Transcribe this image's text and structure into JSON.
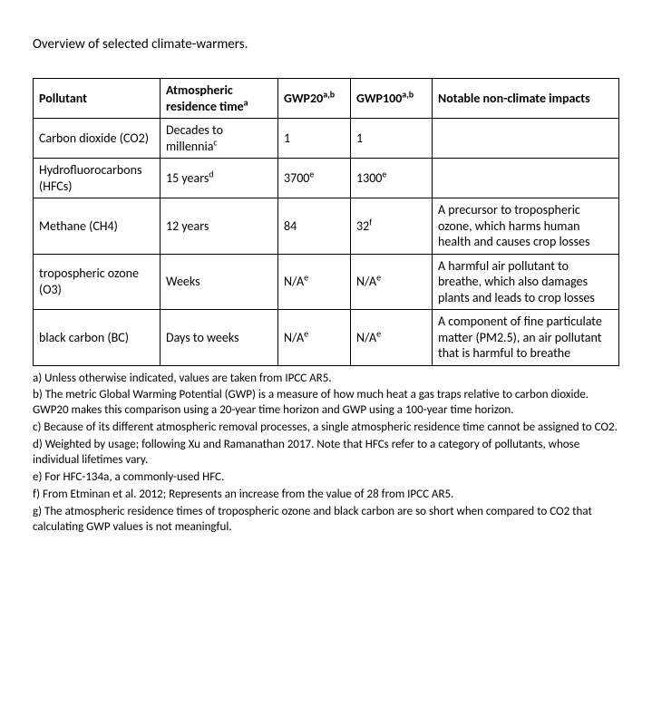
{
  "title": "Overview of selected climate-warmers.",
  "headers": {
    "pollutant": "Pollutant",
    "residence": "Atmospheric residence time",
    "residence_sup": "a",
    "gwp20": "GWP20",
    "gwp20_sup": "a,b",
    "gwp100": "GWP100",
    "gwp100_sup": "a,b",
    "impacts": "Notable non-climate impacts"
  },
  "rows": [
    {
      "pollutant": "Carbon dioxide (CO2)",
      "residence": "Decades to millennia",
      "residence_sup": "c",
      "gwp20": "1",
      "gwp20_sup": "",
      "gwp100": "1",
      "gwp100_sup": "",
      "impacts": ""
    },
    {
      "pollutant": "Hydrofluorocarbons (HFCs)",
      "residence": "15 years",
      "residence_sup": "d",
      "gwp20": "3700",
      "gwp20_sup": "e",
      "gwp100": "1300",
      "gwp100_sup": "e",
      "impacts": ""
    },
    {
      "pollutant": "Methane (CH4)",
      "residence": "12 years",
      "residence_sup": "",
      "gwp20": "84",
      "gwp20_sup": "",
      "gwp100": "32",
      "gwp100_sup": "f",
      "impacts": "A precursor to tropospheric ozone, which harms human health and causes crop losses"
    },
    {
      "pollutant": "tropospheric ozone (O3)",
      "residence": "Weeks",
      "residence_sup": "",
      "gwp20": "N/A",
      "gwp20_sup": "e",
      "gwp100": "N/A",
      "gwp100_sup": "e",
      "impacts": "A harmful air pollutant to breathe, which also damages plants and leads to crop losses"
    },
    {
      "pollutant": "black carbon (BC)",
      "residence": "Days to weeks",
      "residence_sup": "",
      "gwp20": "N/A",
      "gwp20_sup": "e",
      "gwp100": "N/A",
      "gwp100_sup": "e",
      "impacts": "A component of fine particulate matter (PM2.5), an air pollutant that is harmful to breathe"
    }
  ],
  "footnotes": [
    "a) Unless otherwise indicated, values are taken from IPCC AR5.",
    "b) The metric Global Warming Potential (GWP) is a measure of how much heat a gas traps relative to carbon dioxide. GWP20 makes this comparison using a 20-year time horizon and GWP using a 100-year time horizon.",
    "c) Because of its different atmospheric removal processes, a single atmospheric residence time cannot be assigned to CO2.",
    "d) Weighted by usage; following Xu and Ramanathan 2017. Note that HFCs refer to a category of pollutants, whose individual lifetimes vary.",
    "e) For HFC-134a, a commonly-used HFC.",
    "f) From Etminan et al. 2012;  Represents an increase from the value of 28 from IPCC AR5.",
    "g) The atmospheric residence times of tropospheric ozone and black carbon are so short when compared to CO2 that calculating GWP values is not meaningful."
  ]
}
